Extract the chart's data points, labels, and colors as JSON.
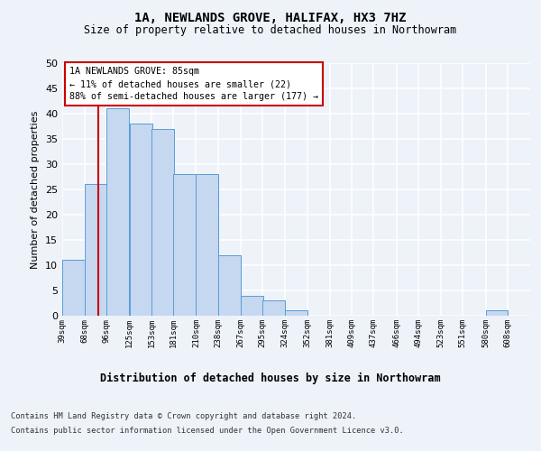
{
  "title1": "1A, NEWLANDS GROVE, HALIFAX, HX3 7HZ",
  "title2": "Size of property relative to detached houses in Northowram",
  "xlabel": "Distribution of detached houses by size in Northowram",
  "ylabel": "Number of detached properties",
  "bins": [
    39,
    68,
    96,
    125,
    153,
    181,
    210,
    238,
    267,
    295,
    324,
    352,
    381,
    409,
    437,
    466,
    494,
    523,
    551,
    580,
    608
  ],
  "counts": [
    11,
    26,
    41,
    38,
    37,
    28,
    28,
    12,
    4,
    3,
    1,
    0,
    0,
    0,
    0,
    0,
    0,
    0,
    0,
    1,
    0
  ],
  "bar_color": "#c5d8f0",
  "bar_edge_color": "#5b9bd5",
  "ref_line_x": 85,
  "ref_line_color": "#cc0000",
  "annotation_text": "1A NEWLANDS GROVE: 85sqm\n← 11% of detached houses are smaller (22)\n88% of semi-detached houses are larger (177) →",
  "annotation_box_color": "#ffffff",
  "annotation_box_edge_color": "#cc0000",
  "ylim": [
    0,
    50
  ],
  "yticks": [
    0,
    5,
    10,
    15,
    20,
    25,
    30,
    35,
    40,
    45,
    50
  ],
  "footer1": "Contains HM Land Registry data © Crown copyright and database right 2024.",
  "footer2": "Contains public sector information licensed under the Open Government Licence v3.0.",
  "bg_color": "#eef2f9",
  "plot_bg_color": "#eef2f9",
  "grid_color": "#ffffff",
  "tick_labels": [
    "39sqm",
    "68sqm",
    "96sqm",
    "125sqm",
    "153sqm",
    "181sqm",
    "210sqm",
    "238sqm",
    "267sqm",
    "295sqm",
    "324sqm",
    "352sqm",
    "381sqm",
    "409sqm",
    "437sqm",
    "466sqm",
    "494sqm",
    "523sqm",
    "551sqm",
    "580sqm",
    "608sqm"
  ]
}
